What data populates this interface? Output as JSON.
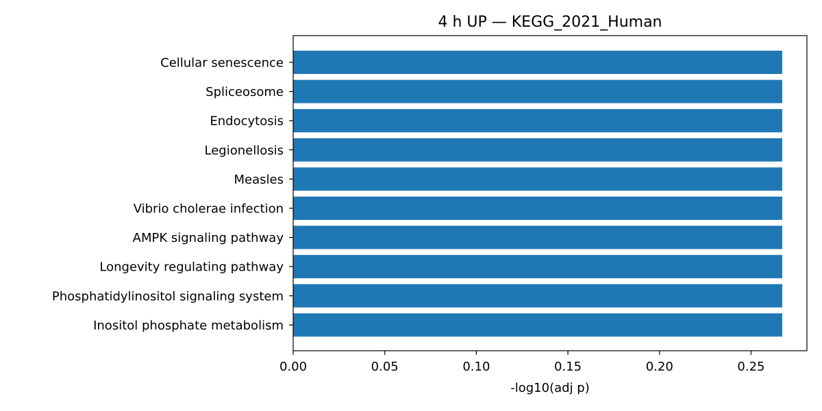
{
  "chart_data": {
    "type": "bar",
    "orientation": "horizontal",
    "title": "4 h UP — KEGG_2021_Human",
    "xlabel": "-log10(adj p)",
    "ylabel": "",
    "categories": [
      "Cellular senescence",
      "Spliceosome",
      "Endocytosis",
      "Legionellosis",
      "Measles",
      "Vibrio cholerae infection",
      "AMPK signaling pathway",
      "Longevity regulating pathway",
      "Phosphatidylinositol signaling system",
      "Inositol phosphate metabolism"
    ],
    "values": [
      0.267,
      0.267,
      0.267,
      0.267,
      0.267,
      0.267,
      0.267,
      0.267,
      0.267,
      0.267
    ],
    "xlim": [
      0,
      0.2805
    ],
    "xticks": [
      "0.00",
      "0.05",
      "0.10",
      "0.15",
      "0.20",
      "0.25"
    ],
    "grid": false,
    "bar_color": "#1f77b4"
  }
}
